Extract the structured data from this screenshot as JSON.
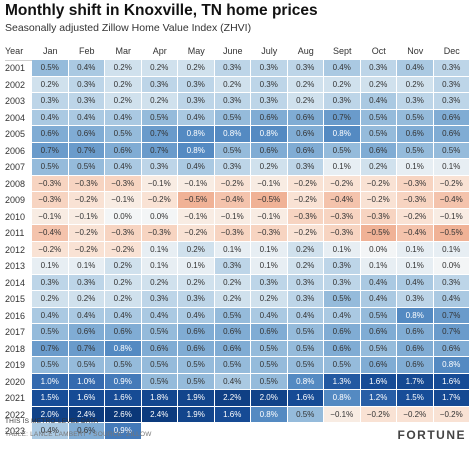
{
  "title": "Monthly shift in Knoxville, TN home prices",
  "subtitle": "Seasonally adjusted Zillow Home Value Index (ZHVI)",
  "footer": {
    "note": "THIS IS METRO-LEVEL DATA",
    "credit": "TABLE: LANCE LAMBERT • SOURCE: ZILLOW",
    "brand": "FORTUNE"
  },
  "chart_data": {
    "type": "heatmap",
    "title": "Monthly shift in Knoxville, TN home prices",
    "subtitle": "Seasonally adjusted Zillow Home Value Index (ZHVI)",
    "row_header": "Year",
    "columns": [
      "Jan",
      "Feb",
      "Mar",
      "Apr",
      "May",
      "June",
      "July",
      "Aug",
      "Sept",
      "Oct",
      "Nov",
      "Dec"
    ],
    "rows": [
      "2001",
      "2002",
      "2003",
      "2004",
      "2005",
      "2006",
      "2007",
      "2008",
      "2009",
      "2010",
      "2011",
      "2012",
      "2013",
      "2014",
      "2015",
      "2016",
      "2017",
      "2018",
      "2019",
      "2020",
      "2021",
      "2022",
      "2023"
    ],
    "unit": "%",
    "values": [
      [
        0.5,
        0.4,
        0.2,
        0.2,
        0.2,
        0.3,
        0.3,
        0.3,
        0.4,
        0.3,
        0.4,
        0.3
      ],
      [
        0.2,
        0.3,
        0.2,
        0.3,
        0.3,
        0.2,
        0.3,
        0.2,
        0.2,
        0.2,
        0.2,
        0.3
      ],
      [
        0.3,
        0.3,
        0.2,
        0.2,
        0.3,
        0.3,
        0.3,
        0.2,
        0.3,
        0.4,
        0.3,
        0.3
      ],
      [
        0.4,
        0.4,
        0.4,
        0.5,
        0.4,
        0.5,
        0.6,
        0.6,
        0.7,
        0.5,
        0.5,
        0.6
      ],
      [
        0.6,
        0.6,
        0.5,
        0.7,
        0.8,
        0.8,
        0.8,
        0.6,
        0.8,
        0.5,
        0.6,
        0.6
      ],
      [
        0.7,
        0.7,
        0.6,
        0.7,
        0.8,
        0.5,
        0.6,
        0.6,
        0.5,
        0.6,
        0.5,
        0.5
      ],
      [
        0.5,
        0.5,
        0.4,
        0.3,
        0.4,
        0.3,
        0.2,
        0.3,
        0.1,
        0.2,
        0.1,
        0.1
      ],
      [
        -0.3,
        -0.3,
        -0.3,
        -0.1,
        -0.1,
        -0.2,
        -0.1,
        -0.2,
        -0.2,
        -0.2,
        -0.3,
        -0.2
      ],
      [
        -0.3,
        -0.2,
        -0.1,
        -0.2,
        -0.5,
        -0.4,
        -0.5,
        -0.2,
        -0.4,
        -0.2,
        -0.3,
        -0.4
      ],
      [
        -0.1,
        -0.1,
        0.0,
        0.0,
        -0.1,
        -0.1,
        -0.1,
        -0.3,
        -0.3,
        -0.3,
        -0.2,
        -0.1
      ],
      [
        -0.4,
        -0.2,
        -0.3,
        -0.3,
        -0.2,
        -0.3,
        -0.3,
        -0.2,
        -0.3,
        -0.5,
        -0.4,
        -0.5
      ],
      [
        -0.2,
        -0.2,
        -0.2,
        0.1,
        0.2,
        0.1,
        0.1,
        0.2,
        0.1,
        0.0,
        0.1,
        0.1
      ],
      [
        0.1,
        0.1,
        0.2,
        0.1,
        0.1,
        0.3,
        0.1,
        0.2,
        0.3,
        0.1,
        0.1,
        0.0
      ],
      [
        0.3,
        0.3,
        0.2,
        0.2,
        0.2,
        0.2,
        0.3,
        0.3,
        0.3,
        0.4,
        0.4,
        0.3
      ],
      [
        0.2,
        0.2,
        0.2,
        0.3,
        0.3,
        0.2,
        0.2,
        0.3,
        0.5,
        0.4,
        0.3,
        0.4
      ],
      [
        0.4,
        0.4,
        0.4,
        0.4,
        0.4,
        0.5,
        0.4,
        0.4,
        0.4,
        0.5,
        0.8,
        0.7
      ],
      [
        0.5,
        0.6,
        0.6,
        0.5,
        0.6,
        0.6,
        0.6,
        0.5,
        0.6,
        0.6,
        0.6,
        0.7
      ],
      [
        0.7,
        0.7,
        0.8,
        0.6,
        0.6,
        0.6,
        0.5,
        0.5,
        0.6,
        0.5,
        0.6,
        0.6
      ],
      [
        0.5,
        0.5,
        0.5,
        0.5,
        0.5,
        0.5,
        0.5,
        0.5,
        0.5,
        0.6,
        0.6,
        0.8
      ],
      [
        1.0,
        1.0,
        0.9,
        0.5,
        0.5,
        0.4,
        0.5,
        0.8,
        1.3,
        1.6,
        1.7,
        1.6
      ],
      [
        1.5,
        1.6,
        1.6,
        1.8,
        1.9,
        2.2,
        2.0,
        1.6,
        0.8,
        1.2,
        1.5,
        1.7
      ],
      [
        2.0,
        2.4,
        2.6,
        2.4,
        1.9,
        1.6,
        0.8,
        0.5,
        -0.1,
        -0.2,
        -0.2,
        -0.2
      ],
      [
        0.4,
        0.6,
        0.9,
        null,
        null,
        null,
        null,
        null,
        null,
        null,
        null,
        null
      ]
    ]
  }
}
